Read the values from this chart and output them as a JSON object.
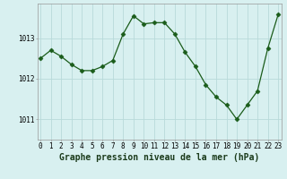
{
  "hours": [
    0,
    1,
    2,
    3,
    4,
    5,
    6,
    7,
    8,
    9,
    10,
    11,
    12,
    13,
    14,
    15,
    16,
    17,
    18,
    19,
    20,
    21,
    22,
    23
  ],
  "pressure": [
    1012.5,
    1012.7,
    1012.55,
    1012.35,
    1012.2,
    1012.2,
    1012.3,
    1012.45,
    1013.1,
    1013.55,
    1013.35,
    1013.38,
    1013.38,
    1013.1,
    1012.65,
    1012.3,
    1011.85,
    1011.55,
    1011.35,
    1011.0,
    1011.35,
    1011.7,
    1012.75,
    1013.58
  ],
  "line_color": "#1a5c1a",
  "marker": "D",
  "marker_size": 2.5,
  "bg_color": "#d8f0f0",
  "grid_color": "#b8dada",
  "yticks": [
    1011,
    1012,
    1013
  ],
  "xticks": [
    0,
    1,
    2,
    3,
    4,
    5,
    6,
    7,
    8,
    9,
    10,
    11,
    12,
    13,
    14,
    15,
    16,
    17,
    18,
    19,
    20,
    21,
    22,
    23
  ],
  "xlabel": "Graphe pression niveau de la mer (hPa)",
  "xlabel_fontsize": 7,
  "tick_fontsize": 5.5,
  "ylim": [
    1010.5,
    1013.85
  ],
  "xlim": [
    -0.3,
    23.3
  ]
}
